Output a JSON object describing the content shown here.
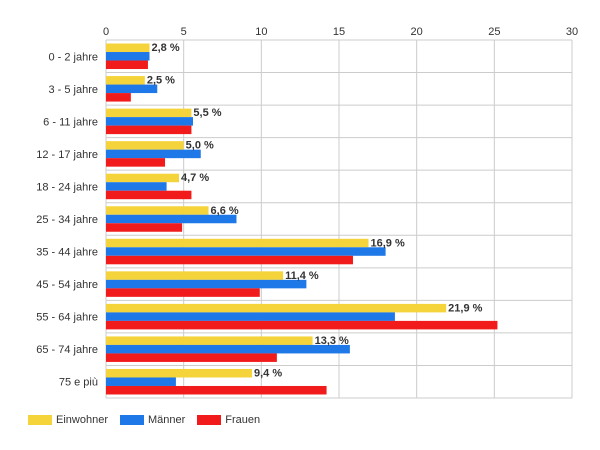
{
  "chart_data": {
    "type": "bar",
    "orientation": "horizontal",
    "categories": [
      "0 - 2 jahre",
      "3 - 5 jahre",
      "6 - 11 jahre",
      "12 - 17 jahre",
      "18 - 24 jahre",
      "25 - 34 jahre",
      "35 - 44 jahre",
      "45 - 54 jahre",
      "55 - 64 jahre",
      "65 - 74 jahre",
      "75 e più"
    ],
    "series": [
      {
        "name": "Einwohner",
        "color": "#f5d33a",
        "values": [
          2.8,
          2.5,
          5.5,
          5.0,
          4.7,
          6.6,
          16.9,
          11.4,
          21.9,
          13.3,
          9.4
        ]
      },
      {
        "name": "Männer",
        "color": "#1f78e8",
        "values": [
          2.8,
          3.3,
          5.6,
          6.1,
          3.9,
          8.4,
          18.0,
          12.9,
          18.6,
          15.7,
          4.5
        ]
      },
      {
        "name": "Frauen",
        "color": "#f21b1b",
        "values": [
          2.7,
          1.6,
          5.5,
          3.8,
          5.5,
          4.9,
          15.9,
          9.9,
          25.2,
          11.0,
          14.2
        ]
      }
    ],
    "data_labels": [
      "2,8 %",
      "2,5 %",
      "5,5 %",
      "5,0 %",
      "4,7 %",
      "6,6 %",
      "16,9 %",
      "11,4 %",
      "21,9 %",
      "13,3 %",
      "9,4 %"
    ],
    "xlim": [
      0,
      30
    ],
    "x_ticks": [
      0,
      5,
      10,
      15,
      20,
      25,
      30
    ],
    "grid": true,
    "legend_position": "bottom-left",
    "title": "",
    "xlabel": "",
    "ylabel": ""
  }
}
